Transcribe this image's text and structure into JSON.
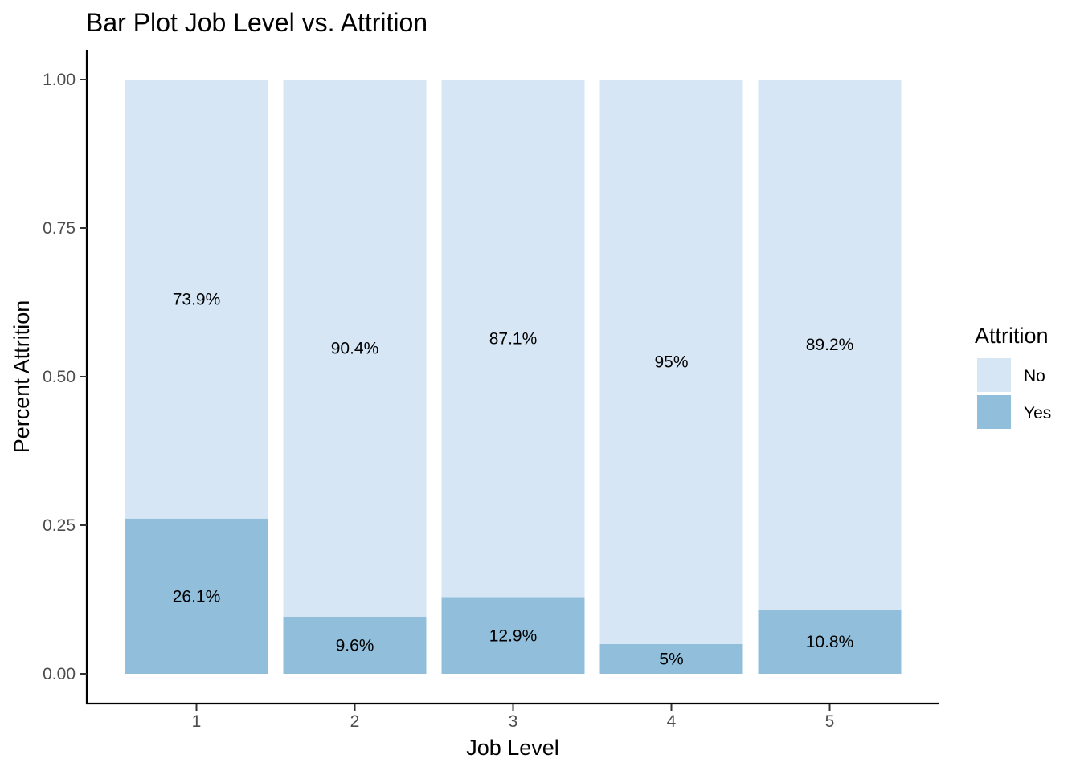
{
  "chart_data": {
    "type": "bar",
    "stacked": true,
    "title": "Bar Plot Job Level vs. Attrition",
    "xlabel": "Job Level",
    "ylabel": "Percent Attrition",
    "categories": [
      "1",
      "2",
      "3",
      "4",
      "5"
    ],
    "ylim": [
      0,
      1
    ],
    "yticks": [
      "0.00",
      "0.25",
      "0.50",
      "0.75",
      "1.00"
    ],
    "ytick_values": [
      0,
      0.25,
      0.5,
      0.75,
      1.0
    ],
    "grid": false,
    "legend": {
      "title": "Attrition",
      "position": "right"
    },
    "series": [
      {
        "name": "No",
        "color": "#d6e6f4",
        "values": [
          0.739,
          0.904,
          0.871,
          0.95,
          0.892
        ],
        "labels": [
          "73.9%",
          "90.4%",
          "87.1%",
          "95%",
          "89.2%"
        ]
      },
      {
        "name": "Yes",
        "color": "#91bfdb",
        "values": [
          0.261,
          0.096,
          0.129,
          0.05,
          0.108
        ],
        "labels": [
          "26.1%",
          "9.6%",
          "12.9%",
          "5%",
          "10.8%"
        ]
      }
    ]
  }
}
